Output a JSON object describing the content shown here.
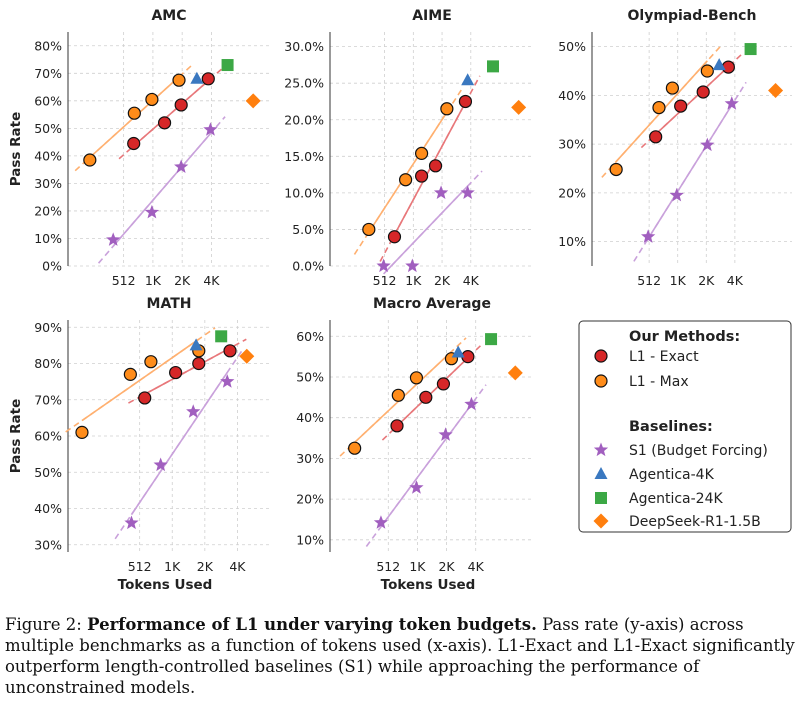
{
  "chart_data": [
    {
      "type": "scatter",
      "title": "AMC",
      "ylabel": "Pass Rate",
      "xlabel": "",
      "y_ticks": [
        "0%",
        "10%",
        "20%",
        "30%",
        "40%",
        "50%",
        "60%",
        "70%",
        "80%"
      ],
      "ylim": [
        0,
        85
      ],
      "x_ticks": [
        "512",
        "1K",
        "2K",
        "4K"
      ],
      "series": [
        {
          "name": "L1 - Exact",
          "points": [
            [
              650,
              44.5
            ],
            [
              1350,
              52
            ],
            [
              2000,
              58.5
            ],
            [
              3800,
              68
            ]
          ]
        },
        {
          "name": "L1 - Max",
          "points": [
            [
              230,
              38.5
            ],
            [
              660,
              55.5
            ],
            [
              1000,
              60.5
            ],
            [
              1900,
              67.5
            ]
          ]
        },
        {
          "name": "S1 (Budget Forcing)",
          "points": [
            [
              400,
              9.5
            ],
            [
              1000,
              19.5
            ],
            [
              2000,
              36
            ],
            [
              4000,
              49.5
            ]
          ]
        },
        {
          "name": "Agentica-4K",
          "points": [
            [
              2900,
              68
            ]
          ]
        },
        {
          "name": "Agentica-24K",
          "points": [
            [
              6000,
              73
            ]
          ]
        },
        {
          "name": "DeepSeek-R1-1.5B",
          "points": [
            [
              11000,
              60
            ]
          ]
        }
      ]
    },
    {
      "type": "scatter",
      "title": "AIME",
      "ylabel": "",
      "xlabel": "",
      "y_ticks": [
        "0.0%",
        "5.0%",
        "10.0%",
        "15.0%",
        "20.0%",
        "25.0%",
        "30.0%"
      ],
      "ylim": [
        0,
        32
      ],
      "x_ticks": [
        "512",
        "1K",
        "2K",
        "4K"
      ],
      "series": [
        {
          "name": "L1 - Exact",
          "points": [
            [
              650,
              4
            ],
            [
              1250,
              12.3
            ],
            [
              1750,
              13.7
            ],
            [
              3600,
              22.5
            ]
          ]
        },
        {
          "name": "L1 - Max",
          "points": [
            [
              350,
              5
            ],
            [
              850,
              11.8
            ],
            [
              1250,
              15.4
            ],
            [
              2300,
              21.5
            ]
          ]
        },
        {
          "name": "S1 (Budget Forcing)",
          "points": [
            [
              500,
              0
            ],
            [
              1000,
              0
            ],
            [
              2000,
              10
            ],
            [
              3800,
              10
            ]
          ]
        },
        {
          "name": "Agentica-4K",
          "points": [
            [
              3800,
              25.4
            ]
          ]
        },
        {
          "name": "Agentica-24K",
          "points": [
            [
              7000,
              27.3
            ]
          ]
        },
        {
          "name": "DeepSeek-R1-1.5B",
          "points": [
            [
              13000,
              21.7
            ]
          ]
        }
      ]
    },
    {
      "type": "scatter",
      "title": "Olympiad-Bench",
      "ylabel": "",
      "xlabel": "",
      "y_ticks": [
        "10%",
        "20%",
        "30%",
        "40%",
        "50%"
      ],
      "ylim": [
        5,
        53
      ],
      "x_ticks": [
        "512",
        "1K",
        "2K",
        "4K"
      ],
      "series": [
        {
          "name": "L1 - Exact",
          "points": [
            [
              600,
              31.5
            ],
            [
              1100,
              37.8
            ],
            [
              1900,
              40.7
            ],
            [
              3500,
              45.8
            ]
          ]
        },
        {
          "name": "L1 - Max",
          "points": [
            [
              230,
              24.8
            ],
            [
              650,
              37.5
            ],
            [
              900,
              41.5
            ],
            [
              2100,
              45
            ]
          ]
        },
        {
          "name": "S1 (Budget Forcing)",
          "points": [
            [
              500,
              11
            ],
            [
              1000,
              19.5
            ],
            [
              2100,
              29.8
            ],
            [
              3800,
              38.3
            ]
          ]
        },
        {
          "name": "Agentica-4K",
          "points": [
            [
              2800,
              46.2
            ]
          ]
        },
        {
          "name": "Agentica-24K",
          "points": [
            [
              6000,
              49.5
            ]
          ]
        },
        {
          "name": "DeepSeek-R1-1.5B",
          "points": [
            [
              11000,
              41
            ]
          ]
        }
      ]
    },
    {
      "type": "scatter",
      "title": "MATH",
      "ylabel": "Pass Rate",
      "xlabel": "Tokens Used",
      "y_ticks": [
        "30%",
        "40%",
        "50%",
        "60%",
        "70%",
        "80%",
        "90%"
      ],
      "ylim": [
        28,
        92
      ],
      "x_ticks": [
        "512",
        "1K",
        "2K",
        "4K"
      ],
      "series": [
        {
          "name": "L1 - Exact",
          "points": [
            [
              570,
              70.5
            ],
            [
              1100,
              77.5
            ],
            [
              1800,
              80
            ],
            [
              3500,
              83.5
            ]
          ]
        },
        {
          "name": "L1 - Max",
          "points": [
            [
              150,
              61
            ],
            [
              420,
              77
            ],
            [
              650,
              80.5
            ],
            [
              1800,
              83.5
            ]
          ]
        },
        {
          "name": "S1 (Budget Forcing)",
          "points": [
            [
              430,
              36
            ],
            [
              800,
              52
            ],
            [
              1600,
              66.7
            ],
            [
              3300,
              75
            ]
          ]
        },
        {
          "name": "Agentica-4K",
          "points": [
            [
              1700,
              85
            ]
          ]
        },
        {
          "name": "Agentica-24K",
          "points": [
            [
              2900,
              87.5
            ]
          ]
        },
        {
          "name": "DeepSeek-R1-1.5B",
          "points": [
            [
              5000,
              82
            ]
          ]
        }
      ]
    },
    {
      "type": "scatter",
      "title": "Macro Average",
      "ylabel": "",
      "xlabel": "Tokens Used",
      "y_ticks": [
        "10%",
        "20%",
        "30%",
        "40%",
        "50%",
        "60%"
      ],
      "ylim": [
        7,
        64
      ],
      "x_ticks": [
        "512",
        "1K",
        "2K",
        "4K"
      ],
      "series": [
        {
          "name": "L1 - Exact",
          "points": [
            [
              630,
              38
            ],
            [
              1250,
              45
            ],
            [
              1900,
              48.3
            ],
            [
              3400,
              55
            ]
          ]
        },
        {
          "name": "L1 - Max",
          "points": [
            [
              230,
              32.5
            ],
            [
              650,
              45.5
            ],
            [
              1000,
              49.8
            ],
            [
              2300,
              54.5
            ]
          ]
        },
        {
          "name": "S1 (Budget Forcing)",
          "points": [
            [
              430,
              14.2
            ],
            [
              1000,
              22.8
            ],
            [
              2000,
              35.8
            ],
            [
              3700,
              43.3
            ]
          ]
        },
        {
          "name": "Agentica-4K",
          "points": [
            [
              2700,
              56
            ]
          ]
        },
        {
          "name": "Agentica-24K",
          "points": [
            [
              5900,
              59.3
            ]
          ]
        },
        {
          "name": "DeepSeek-R1-1.5B",
          "points": [
            [
              10500,
              51
            ]
          ]
        }
      ]
    }
  ],
  "legend": {
    "our_methods_title": "Our Methods:",
    "baselines_title": "Baselines:",
    "entries": [
      "L1 - Exact",
      "L1 - Max",
      "S1 (Budget Forcing)",
      "Agentica-4K",
      "Agentica-24K",
      "DeepSeek-R1-1.5B"
    ]
  },
  "colors": {
    "l1_exact": "#d62728",
    "l1_max": "#ff8c1a",
    "s1": "#a15fbf",
    "agentica_4k": "#3a78c0",
    "agentica_24k": "#3ca845",
    "deepseek": "#ff7f0e",
    "l1_exact_fit": "#e8777a",
    "l1_max_fit": "#ffb070",
    "s1_fit": "#c9a1db"
  },
  "caption": {
    "label": "Figure 2: ",
    "bold": "Performance of L1 under varying token budgets.",
    "text": " Pass rate (y-axis) across multiple benchmarks as a function of tokens used (x-axis). L1-Exact and L1-Exact significantly outperform length-controlled baselines (S1) while approaching the performance of unconstrained models."
  }
}
